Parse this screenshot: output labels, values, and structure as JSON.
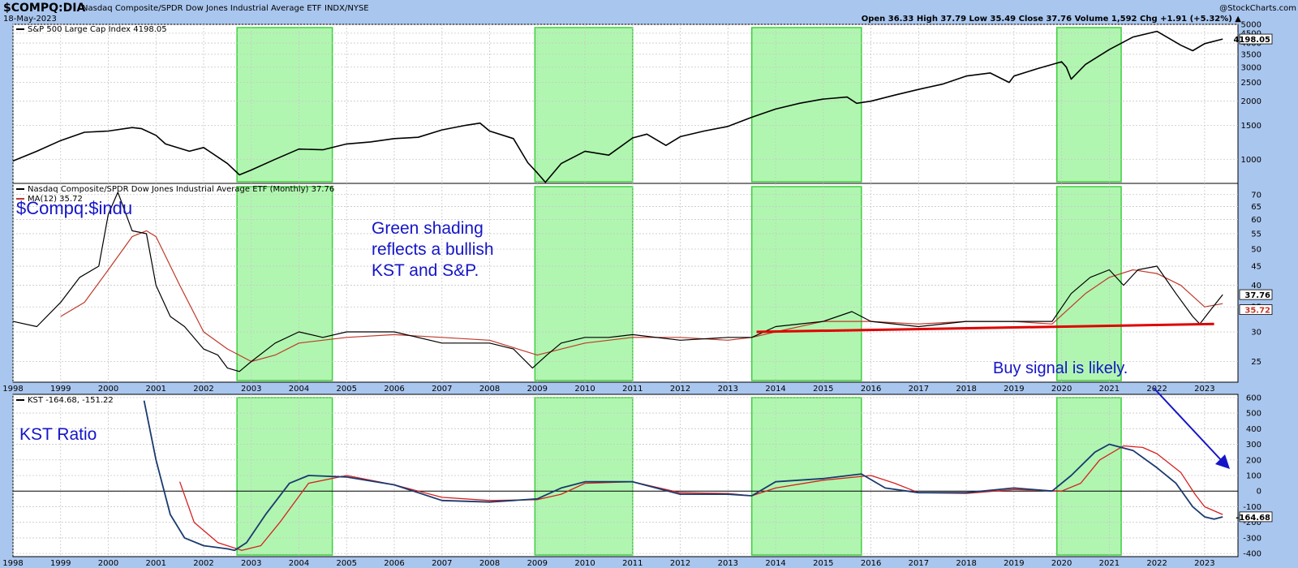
{
  "header": {
    "symbol": "$COMPQ:DIA",
    "name": "Nasdaq Composite/SPDR Dow Jones Industrial Average ETF",
    "exchange": "INDX/NYSE",
    "date": "18-May-2023",
    "watermark": "@StockCharts.com",
    "quote": {
      "open": "36.33",
      "high": "37.79",
      "low": "35.49",
      "close": "37.76",
      "volume": "1,592",
      "chg": "+1.91 (+5.32%)"
    },
    "quote_text": "Open 36.33  High 37.79  Low 35.49  Close 37.76  Volume 1,592  Chg +1.91 (+5.32%) ▲"
  },
  "chart_data": [
    {
      "type": "line",
      "legend": "S&P 500 Large Cap Index 4198.05",
      "last_value": "4198.05",
      "yscale": "log",
      "ylim": [
        750,
        5000
      ],
      "yticks": [
        1000,
        1500,
        2000,
        2500,
        3000,
        3500,
        4000,
        4500,
        5000
      ],
      "x": [
        1998.0,
        1998.5,
        1999.0,
        1999.5,
        2000.0,
        2000.5,
        2000.7,
        2001.0,
        2001.2,
        2001.7,
        2002.0,
        2002.5,
        2002.75,
        2003.0,
        2003.5,
        2004.0,
        2004.5,
        2005.0,
        2005.5,
        2006.0,
        2006.5,
        2007.0,
        2007.5,
        2007.8,
        2008.0,
        2008.5,
        2008.8,
        2009.0,
        2009.17,
        2009.5,
        2010.0,
        2010.5,
        2011.0,
        2011.3,
        2011.7,
        2012.0,
        2012.5,
        2013.0,
        2013.5,
        2014.0,
        2014.5,
        2015.0,
        2015.5,
        2015.7,
        2016.0,
        2016.5,
        2017.0,
        2017.5,
        2018.0,
        2018.5,
        2018.9,
        2019.0,
        2019.5,
        2020.0,
        2020.1,
        2020.2,
        2020.5,
        2021.0,
        2021.5,
        2022.0,
        2022.5,
        2022.75,
        2023.0,
        2023.38
      ],
      "values": [
        980,
        1100,
        1250,
        1380,
        1400,
        1460,
        1440,
        1330,
        1200,
        1100,
        1150,
        950,
        830,
        880,
        1000,
        1130,
        1120,
        1200,
        1230,
        1280,
        1300,
        1420,
        1500,
        1540,
        1400,
        1280,
        960,
        850,
        760,
        950,
        1100,
        1050,
        1290,
        1350,
        1180,
        1310,
        1400,
        1480,
        1650,
        1820,
        1950,
        2050,
        2100,
        1950,
        2000,
        2150,
        2300,
        2450,
        2700,
        2800,
        2500,
        2700,
        2950,
        3200,
        3000,
        2600,
        3100,
        3700,
        4300,
        4600,
        3900,
        3650,
        3970,
        4198
      ]
    },
    {
      "type": "line",
      "legend_main": "Nasdaq Composite/SPDR Dow Jones Industrial Average ETF (Monthly) 37.76",
      "legend_ma": "MA(12) 35.72",
      "last_value": "37.76",
      "ma_last_value": "35.72",
      "yscale": "log",
      "ylim": [
        22,
        75
      ],
      "yticks": [
        25,
        30,
        35,
        40,
        45,
        50,
        55,
        60,
        65,
        70
      ],
      "x": [
        1998.0,
        1998.5,
        1999.0,
        1999.4,
        1999.8,
        2000.0,
        2000.2,
        2000.5,
        2000.8,
        2001.0,
        2001.3,
        2001.6,
        2002.0,
        2002.3,
        2002.5,
        2002.75,
        2003.0,
        2003.5,
        2004.0,
        2004.5,
        2005.0,
        2006.0,
        2007.0,
        2008.0,
        2008.5,
        2008.9,
        2009.2,
        2009.5,
        2010.0,
        2010.5,
        2011.0,
        2012.0,
        2013.0,
        2013.5,
        2014.0,
        2015.0,
        2015.6,
        2016.0,
        2017.0,
        2018.0,
        2019.0,
        2019.8,
        2020.2,
        2020.6,
        2021.0,
        2021.3,
        2021.6,
        2022.0,
        2022.4,
        2022.75,
        2022.9,
        2023.1,
        2023.38
      ],
      "values": [
        32,
        31,
        36,
        42,
        45,
        62,
        71,
        56,
        55,
        40,
        33,
        31,
        27,
        26,
        24,
        23.5,
        25,
        28,
        30,
        29,
        30,
        30,
        28,
        28,
        27,
        24,
        26,
        28,
        29,
        29,
        29.5,
        28.5,
        29,
        29,
        31,
        32,
        34,
        32,
        31,
        32,
        32,
        32,
        38,
        42,
        44,
        40,
        44,
        45,
        38,
        33,
        31.5,
        34,
        37.76
      ],
      "ma_x": [
        1999.0,
        1999.5,
        2000.0,
        2000.5,
        2000.8,
        2001.0,
        2001.5,
        2002.0,
        2002.5,
        2003.0,
        2003.5,
        2004.0,
        2005.0,
        2006.0,
        2007.0,
        2008.0,
        2009.0,
        2010.0,
        2011.0,
        2012.0,
        2013.0,
        2013.5,
        2014.0,
        2015.0,
        2016.0,
        2017.0,
        2018.0,
        2019.0,
        2019.8,
        2020.5,
        2021.0,
        2021.5,
        2022.0,
        2022.5,
        2023.0,
        2023.38
      ],
      "ma_values": [
        33,
        36,
        44,
        54,
        56,
        54,
        40,
        30,
        27,
        25,
        26,
        28,
        29,
        29.5,
        29,
        28.5,
        26,
        28,
        29,
        29,
        28.5,
        29,
        30,
        32,
        32,
        31.5,
        32,
        32,
        31.5,
        38,
        42,
        44,
        43,
        40,
        35,
        35.72
      ],
      "trendline": {
        "x": [
          2013.6,
          2023.2
        ],
        "y": [
          30,
          31.5
        ]
      }
    },
    {
      "type": "line",
      "legend": "KST -164.68, -151.22",
      "kst_label": "-164.68",
      "ylim": [
        -420,
        620
      ],
      "yticks": [
        600,
        500,
        400,
        300,
        200,
        100,
        0,
        -100,
        -200,
        -300,
        -400
      ],
      "x": [
        2000.75,
        2001.0,
        2001.3,
        2001.6,
        2002.0,
        2002.5,
        2002.65,
        2002.9,
        2003.3,
        2003.8,
        2004.2,
        2005.0,
        2006.0,
        2007.0,
        2008.0,
        2009.0,
        2009.5,
        2010.0,
        2011.0,
        2012.0,
        2013.0,
        2013.5,
        2014.0,
        2015.0,
        2015.8,
        2016.3,
        2017.0,
        2018.0,
        2019.0,
        2019.8,
        2020.2,
        2020.7,
        2021.0,
        2021.5,
        2022.0,
        2022.4,
        2022.75,
        2023.0,
        2023.2,
        2023.38
      ],
      "values": [
        580,
        200,
        -150,
        -300,
        -350,
        -370,
        -380,
        -330,
        -150,
        50,
        100,
        90,
        40,
        -60,
        -70,
        -50,
        20,
        60,
        60,
        -20,
        -20,
        -30,
        60,
        80,
        110,
        20,
        -10,
        -10,
        20,
        0,
        100,
        250,
        300,
        260,
        150,
        50,
        -100,
        -165,
        -180,
        -165
      ],
      "signal_x": [
        2001.5,
        2001.8,
        2002.3,
        2002.8,
        2003.2,
        2003.6,
        2004.2,
        2005.0,
        2006.0,
        2007.0,
        2008.0,
        2009.0,
        2009.5,
        2010.0,
        2011.0,
        2012.0,
        2013.0,
        2013.5,
        2014.0,
        2015.0,
        2016.0,
        2016.5,
        2017.0,
        2018.0,
        2019.0,
        2020.0,
        2020.4,
        2020.8,
        2021.3,
        2021.7,
        2022.0,
        2022.5,
        2022.8,
        2023.0,
        2023.38
      ],
      "signal_values": [
        60,
        -200,
        -330,
        -380,
        -350,
        -200,
        50,
        100,
        40,
        -40,
        -60,
        -55,
        -20,
        50,
        60,
        -10,
        -15,
        -30,
        20,
        70,
        100,
        50,
        -10,
        -15,
        10,
        0,
        50,
        200,
        290,
        280,
        240,
        120,
        -20,
        -100,
        -150
      ]
    }
  ],
  "shading": [
    [
      2002.7,
      2004.7
    ],
    [
      2008.95,
      2011.0
    ],
    [
      2013.5,
      2015.8
    ],
    [
      2019.9,
      2021.25
    ]
  ],
  "years": [
    "1998",
    "1999",
    "2000",
    "2001",
    "2002",
    "2003",
    "2004",
    "2005",
    "2006",
    "2007",
    "2008",
    "2009",
    "2010",
    "2011",
    "2012",
    "2013",
    "2014",
    "2015",
    "2016",
    "2017",
    "2018",
    "2019",
    "2020",
    "2021",
    "2022",
    "2023"
  ],
  "annotations": {
    "ratio_label": "$Compq:$indu",
    "shading_note": [
      "Green shading",
      "reflects a bullish",
      "KST and S&P."
    ],
    "buy_signal": "Buy signal is likely.",
    "kst_label": "KST Ratio"
  },
  "colors": {
    "price": "#000000",
    "ma": "#c0392b",
    "kst": "#1a3a6e",
    "signal": "#d62020",
    "shade": "#7cf07c",
    "trend": "#e00000",
    "ann": "#1515c8",
    "bg": "#a9c6ee"
  }
}
